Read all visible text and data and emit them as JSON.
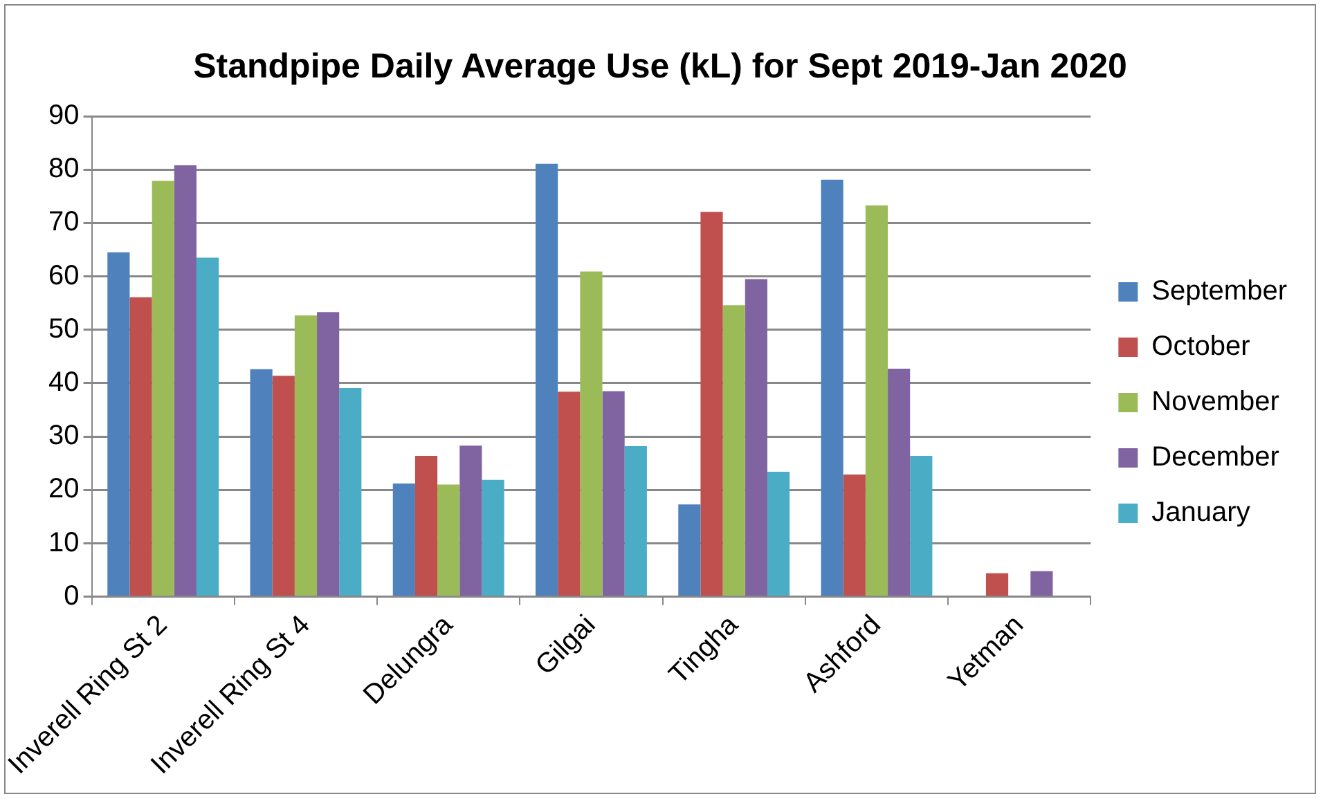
{
  "chart_data": {
    "type": "bar",
    "title": "Standpipe Daily Average Use (kL) for Sept 2019-Jan 2020",
    "categories": [
      "Inverell Ring St 2",
      "Inverell Ring St 4",
      "Delungra",
      "Gilgai",
      "Tingha",
      "Ashford",
      "Yetman"
    ],
    "series": [
      {
        "name": "September",
        "color": "#4f81bd",
        "values": [
          64.5,
          42.6,
          21.2,
          81.1,
          17.3,
          78.1,
          null
        ]
      },
      {
        "name": "October",
        "color": "#c0504d",
        "values": [
          56.1,
          41.4,
          26.4,
          38.4,
          72.1,
          22.9,
          4.4
        ]
      },
      {
        "name": "November",
        "color": "#9bbb59",
        "values": [
          77.9,
          52.7,
          21,
          60.9,
          54.6,
          73.3,
          null
        ]
      },
      {
        "name": "December",
        "color": "#8064a2",
        "values": [
          80.8,
          53.3,
          28.3,
          38.5,
          59.5,
          42.7,
          4.8
        ]
      },
      {
        "name": "January",
        "color": "#4bacc6",
        "values": [
          63.5,
          39.1,
          21.9,
          28.2,
          23.4,
          26.4,
          null
        ]
      }
    ],
    "ylim": [
      0,
      90
    ],
    "yticks": [
      0,
      10,
      20,
      30,
      40,
      50,
      60,
      70,
      80,
      90
    ],
    "grid": "y",
    "legend": "right"
  }
}
